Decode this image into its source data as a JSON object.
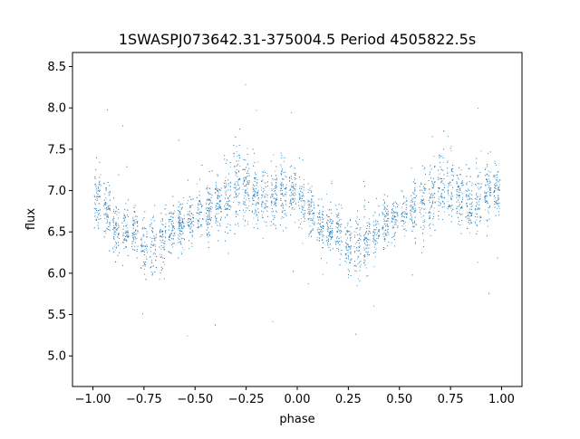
{
  "chart_data": {
    "type": "scatter",
    "title": "1SWASPJ073642.31-375004.5 Period 4505822.5s",
    "xlabel": "phase",
    "ylabel": "flux",
    "xlim": [
      -1.1,
      1.1
    ],
    "ylim": [
      4.63,
      8.67
    ],
    "x_ticks": [
      -1.0,
      -0.75,
      -0.5,
      -0.25,
      0.0,
      0.25,
      0.5,
      0.75,
      1.0
    ],
    "x_tick_labels": [
      "−1.00",
      "−0.75",
      "−0.50",
      "−0.25",
      "0.00",
      "0.25",
      "0.50",
      "0.75",
      "1.00"
    ],
    "y_ticks": [
      5.0,
      5.5,
      6.0,
      6.5,
      7.0,
      7.5,
      8.0,
      8.5
    ],
    "y_tick_labels": [
      "5.0",
      "5.5",
      "6.0",
      "6.5",
      "7.0",
      "7.5",
      "8.0",
      "8.5"
    ],
    "grid": false,
    "marker_color": "#1f77b4",
    "series": [
      {
        "phase_profile": {
          "x": [
            0.0,
            0.05,
            0.1,
            0.15,
            0.2,
            0.25,
            0.3,
            0.35,
            0.4,
            0.45,
            0.5,
            0.55,
            0.6,
            0.65,
            0.7,
            0.75,
            0.8,
            0.85,
            0.9,
            0.95,
            1.0
          ],
          "y": [
            6.95,
            6.8,
            6.6,
            6.5,
            6.55,
            6.3,
            6.3,
            6.45,
            6.55,
            6.6,
            6.7,
            6.75,
            6.8,
            6.9,
            7.05,
            7.0,
            6.95,
            6.85,
            6.95,
            7.0,
            6.95
          ],
          "spread": [
            0.35,
            0.35,
            0.3,
            0.3,
            0.3,
            0.35,
            0.4,
            0.35,
            0.3,
            0.3,
            0.3,
            0.3,
            0.35,
            0.4,
            0.45,
            0.4,
            0.35,
            0.35,
            0.4,
            0.4,
            0.35
          ]
        },
        "point_count": 5200
      }
    ]
  }
}
